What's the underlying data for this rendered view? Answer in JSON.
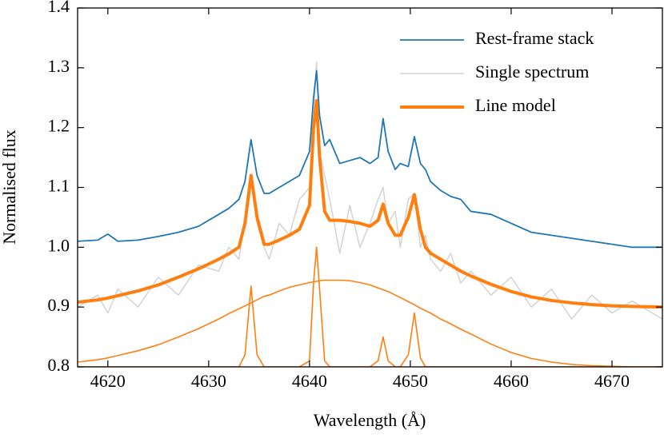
{
  "chart_data": {
    "type": "line",
    "xlabel": "Wavelength (Å)",
    "ylabel": "Normalised flux",
    "x": [
      4617,
      4619,
      4620,
      4621,
      4623,
      4625,
      4627,
      4629,
      4631,
      4632,
      4633,
      4633.6,
      4634.2,
      4634.8,
      4635.5,
      4636,
      4637,
      4638,
      4639,
      4640,
      4640.4,
      4640.7,
      4641,
      4641.5,
      4642,
      4643,
      4644,
      4645,
      4646,
      4646.8,
      4647.3,
      4647.8,
      4648.5,
      4649,
      4649.8,
      4650.4,
      4651,
      4651.5,
      4652,
      4653,
      4654,
      4655,
      4656,
      4658,
      4660,
      4662,
      4664,
      4666,
      4668,
      4670,
      4672,
      4675
    ],
    "series": [
      {
        "name": "Single spectrum",
        "color": "#d3d3d3",
        "width": 1.5,
        "values": [
          0.9,
          0.92,
          0.89,
          0.93,
          0.9,
          0.95,
          0.92,
          0.97,
          0.96,
          1.0,
          0.98,
          1.05,
          1.11,
          1.04,
          1.0,
          0.98,
          1.04,
          1.02,
          1.08,
          1.1,
          1.22,
          1.31,
          1.16,
          1.12,
          1.08,
          0.99,
          1.07,
          1.0,
          1.04,
          1.08,
          1.1,
          1.04,
          1.06,
          1.0,
          1.08,
          1.09,
          1.0,
          1.02,
          0.98,
          0.96,
          0.99,
          0.94,
          0.96,
          0.92,
          0.95,
          0.9,
          0.93,
          0.88,
          0.92,
          0.89,
          0.91,
          0.88
        ]
      },
      {
        "name": "Rest-frame stack",
        "color": "#1f77b4",
        "width": 1.8,
        "values": [
          1.01,
          1.012,
          1.022,
          1.01,
          1.012,
          1.018,
          1.025,
          1.035,
          1.055,
          1.065,
          1.08,
          1.11,
          1.18,
          1.12,
          1.09,
          1.09,
          1.1,
          1.11,
          1.12,
          1.16,
          1.25,
          1.295,
          1.22,
          1.17,
          1.18,
          1.14,
          1.145,
          1.15,
          1.14,
          1.15,
          1.215,
          1.16,
          1.13,
          1.14,
          1.135,
          1.185,
          1.14,
          1.13,
          1.11,
          1.095,
          1.085,
          1.08,
          1.06,
          1.055,
          1.04,
          1.025,
          1.02,
          1.015,
          1.01,
          1.005,
          1.0,
          1.0
        ]
      },
      {
        "name": "Line model",
        "color": "#ff7f0e",
        "width": 4,
        "values": [
          0.908,
          0.912,
          0.915,
          0.919,
          0.927,
          0.937,
          0.95,
          0.964,
          0.98,
          0.989,
          1.0,
          1.04,
          1.12,
          1.05,
          1.005,
          1.005,
          1.012,
          1.02,
          1.03,
          1.07,
          1.2,
          1.245,
          1.15,
          1.06,
          1.045,
          1.045,
          1.043,
          1.04,
          1.035,
          1.045,
          1.072,
          1.04,
          1.02,
          1.02,
          1.05,
          1.088,
          1.03,
          1.0,
          0.99,
          0.98,
          0.97,
          0.96,
          0.952,
          0.938,
          0.926,
          0.917,
          0.911,
          0.907,
          0.904,
          0.902,
          0.901,
          0.9
        ]
      },
      {
        "color": "#ff7f0e",
        "width": 1.6,
        "values": [
          0.808,
          0.812,
          0.815,
          0.819,
          0.827,
          0.837,
          0.85,
          0.864,
          0.88,
          0.889,
          0.897,
          0.902,
          0.907,
          0.912,
          0.918,
          0.92,
          0.927,
          0.933,
          0.937,
          0.941,
          0.942,
          0.943,
          0.944,
          0.945,
          0.945,
          0.945,
          0.944,
          0.941,
          0.937,
          0.932,
          0.929,
          0.926,
          0.92,
          0.916,
          0.909,
          0.904,
          0.898,
          0.894,
          0.89,
          0.88,
          0.872,
          0.863,
          0.855,
          0.838,
          0.824,
          0.814,
          0.808,
          0.804,
          0.802,
          0.801,
          0.8,
          0.8
        ]
      },
      {
        "color": "#ff7f0e",
        "width": 1.6,
        "values": [
          0.8,
          0.8,
          0.8,
          0.8,
          0.8,
          0.8,
          0.8,
          0.8,
          0.8,
          0.8,
          0.8,
          0.82,
          0.935,
          0.82,
          0.8,
          0.8,
          0.8,
          0.8,
          0.8,
          0.81,
          0.94,
          1.0,
          0.93,
          0.81,
          0.8,
          0.8,
          0.8,
          0.8,
          0.8,
          0.81,
          0.85,
          0.81,
          0.8,
          0.8,
          0.82,
          0.89,
          0.815,
          0.8,
          0.8,
          0.8,
          0.8,
          0.8,
          0.8,
          0.8,
          0.8,
          0.8,
          0.8,
          0.8,
          0.8,
          0.8,
          0.8,
          0.8
        ]
      }
    ],
    "legend_order": [
      1,
      0,
      2
    ],
    "legend": "upper right",
    "xlim": [
      4617,
      4675
    ],
    "xticks": [
      4620,
      4630,
      4640,
      4650,
      4660,
      4670
    ],
    "ylim": [
      0.8,
      1.4
    ],
    "yticks": [
      0.8,
      0.9,
      {
        "value": 1,
        "label": "1.0"
      },
      1.1,
      1.2,
      1.3,
      1.4
    ]
  }
}
